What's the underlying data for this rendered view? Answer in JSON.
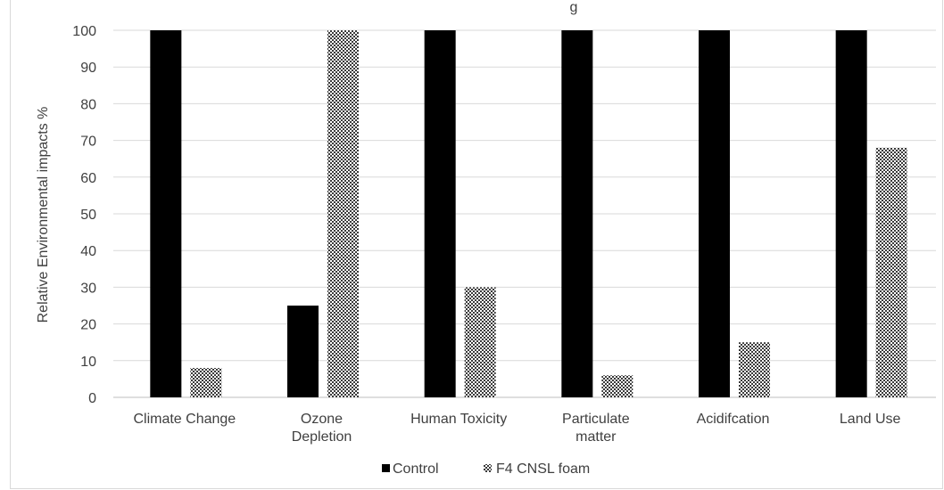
{
  "chart_data": {
    "type": "bar",
    "title": "",
    "title_fragment": "g",
    "xlabel": "",
    "ylabel": "Relative Environmental impacts %",
    "ylim": [
      0,
      100
    ],
    "yticks": [
      0,
      10,
      20,
      30,
      40,
      50,
      60,
      70,
      80,
      90,
      100
    ],
    "grid": "horizontal",
    "legend_position": "bottom",
    "categories": [
      [
        "Climate Change"
      ],
      [
        "Ozone",
        "Depletion"
      ],
      [
        "Human Toxicity"
      ],
      [
        "Particulate",
        "matter"
      ],
      [
        "Acidifcation"
      ],
      [
        "Land Use"
      ]
    ],
    "series": [
      {
        "name": "Control",
        "values": [
          100,
          25,
          100,
          100,
          100,
          100
        ],
        "color": "#000000",
        "pattern": "solid"
      },
      {
        "name": "F4 CNSL foam",
        "values": [
          8,
          100,
          30,
          6,
          15,
          68
        ],
        "color": "#404040",
        "pattern": "checker"
      }
    ]
  }
}
